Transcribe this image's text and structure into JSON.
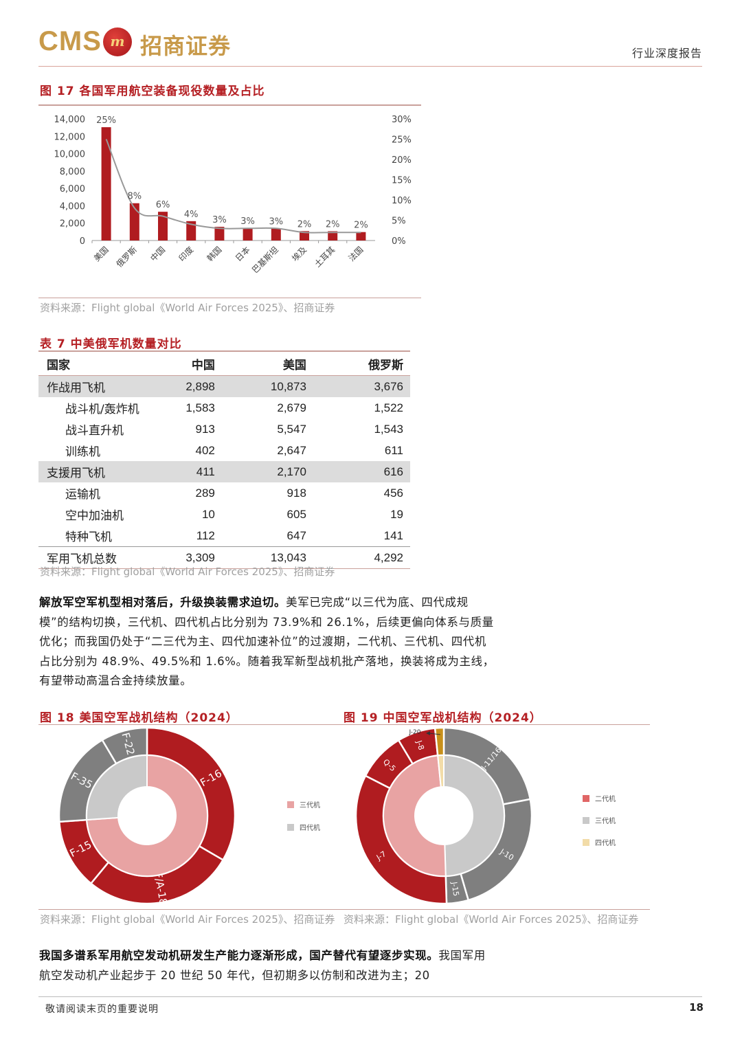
{
  "header": {
    "logo_en": "CMS",
    "logo_mark": "m",
    "logo_cn": "招商证券",
    "report_type": "行业深度报告"
  },
  "figure17": {
    "title": "图 17 各国军用航空装备现役数量及占比",
    "source": "资料来源：Flight global《World Air Forces 2025》、招商证券"
  },
  "table7": {
    "title": "表 7 中美俄军机数量对比",
    "headers": [
      "国家",
      "中国",
      "美国",
      "俄罗斯"
    ],
    "rows": [
      {
        "label": "作战用飞机",
        "cn": "2,898",
        "us": "10,873",
        "ru": "3,676"
      },
      {
        "label": "战斗机/轰炸机",
        "cn": "1,583",
        "us": "2,679",
        "ru": "1,522"
      },
      {
        "label": "战斗直升机",
        "cn": "913",
        "us": "5,547",
        "ru": "1,543"
      },
      {
        "label": "训练机",
        "cn": "402",
        "us": "2,647",
        "ru": "611"
      },
      {
        "label": "支援用飞机",
        "cn": "411",
        "us": "2,170",
        "ru": "616"
      },
      {
        "label": "运输机",
        "cn": "289",
        "us": "918",
        "ru": "456"
      },
      {
        "label": "空中加油机",
        "cn": "10",
        "us": "605",
        "ru": "19"
      },
      {
        "label": "特种飞机",
        "cn": "112",
        "us": "647",
        "ru": "141"
      },
      {
        "label": "军用飞机总数",
        "cn": "3,309",
        "us": "13,043",
        "ru": "4,292"
      }
    ],
    "source": "资料来源：Flight global《World Air Forces 2025》、招商证券"
  },
  "paragraph1": {
    "bold": "解放军空军机型相对落后，升级换装需求迫切。",
    "text": "美军已完成“以三代为底、四代成规模”的结构切换，三代机、四代机占比分别为 73.9%和 26.1%，后续更偏向体系与质量优化；而我国仍处于“二三代为主、四代加速补位”的过渡期，二代机、三代机、四代机占比分别为 48.9%、49.5%和 1.6%。随着我军新型战机批产落地，换装将成为主线，有望带动高温合金持续放量。"
  },
  "figure18": {
    "title": "图 18 美国空军战机结构（2024）",
    "source": "资料来源：Flight global《World Air Forces 2025》、招商证券"
  },
  "figure19": {
    "title": "图 19 中国空军战机结构（2024）",
    "source": "资料来源：Flight global《World Air Forces 2025》、招商证券"
  },
  "paragraph2": {
    "bold": "我国多谱系军用航空发动机研发生产能力逐渐形成，国产替代有望逐步实现。",
    "text": "我国军用航空发动机产业起步于 20 世纪 50 年代，但初期多以仿制和改进为主；20"
  },
  "footer": {
    "note": "敬请阅读末页的重要说明",
    "page": "18"
  },
  "colors": {
    "brand_red": "#b52024",
    "bar_red": "#b01c20",
    "gen3_pink": "#e8a3a3",
    "gen4_grey": "#c9c9c9",
    "dark_grey": "#7f7f7f",
    "gold": "#c8901a"
  },
  "chart_data": [
    {
      "type": "bar",
      "chart": "figure17",
      "categories": [
        "美国",
        "俄罗斯",
        "中国",
        "印度",
        "韩国",
        "日本",
        "巴基斯坦",
        "埃及",
        "土耳其",
        "法国"
      ],
      "series": [
        {
          "name": "",
          "axis": "left",
          "values": [
            13043,
            4292,
            3309,
            2229,
            1576,
            1443,
            1399,
            1080,
            1069,
            972
          ]
        },
        {
          "name": "",
          "axis": "right",
          "type": "line",
          "values": [
            25,
            8,
            6,
            4,
            3,
            3,
            3,
            2,
            2,
            2
          ],
          "data_labels": [
            "25%",
            "8%",
            "6%",
            "4%",
            "3%",
            "3%",
            "3%",
            "2%",
            "2%",
            "2%"
          ]
        }
      ],
      "ylim": [
        0,
        14000
      ],
      "y_ticks": [
        "0",
        "2,000",
        "4,000",
        "6,000",
        "8,000",
        "10,000",
        "12,000",
        "14,000"
      ],
      "y2lim": [
        0,
        30
      ],
      "y2_ticks": [
        "0%",
        "5%",
        "10%",
        "15%",
        "20%",
        "25%",
        "30%"
      ],
      "grid": false
    },
    {
      "type": "pie",
      "chart": "figure18",
      "style": "double-donut",
      "legend": [
        "三代机",
        "四代机"
      ],
      "inner": [
        {
          "name": "三代机",
          "value": 73.9
        },
        {
          "name": "四代机",
          "value": 26.1
        }
      ],
      "outer": [
        {
          "label": "F-16",
          "value": 33.4,
          "group": "三代机"
        },
        {
          "label": "F/A-18",
          "value": 27.6,
          "group": "三代机"
        },
        {
          "label": "F-15",
          "value": 12.9,
          "group": "三代机"
        },
        {
          "label": "F-35",
          "value": 17.6,
          "group": "四代机"
        },
        {
          "label": "F-22",
          "value": 8.5,
          "group": "四代机"
        }
      ],
      "legend_position": "right"
    },
    {
      "type": "pie",
      "chart": "figure19",
      "style": "double-donut",
      "legend": [
        "二代机",
        "三代机",
        "四代机"
      ],
      "inner": [
        {
          "name": "三代机",
          "value": 49.5
        },
        {
          "name": "二代机",
          "value": 48.9
        },
        {
          "name": "四代机",
          "value": 1.6
        }
      ],
      "outer": [
        {
          "label": "J-11/16",
          "value": 22.0,
          "group": "三代机"
        },
        {
          "label": "J-10",
          "value": 23.5,
          "group": "三代机"
        },
        {
          "label": "J-15",
          "value": 4.0,
          "group": "三代机"
        },
        {
          "label": "J-7",
          "value": 33.0,
          "group": "二代机"
        },
        {
          "label": "Q-5",
          "value": 8.9,
          "group": "二代机"
        },
        {
          "label": "J-8",
          "value": 7.0,
          "group": "二代机"
        },
        {
          "label": "J-20",
          "value": 1.6,
          "group": "四代机"
        }
      ],
      "legend_position": "right"
    }
  ]
}
